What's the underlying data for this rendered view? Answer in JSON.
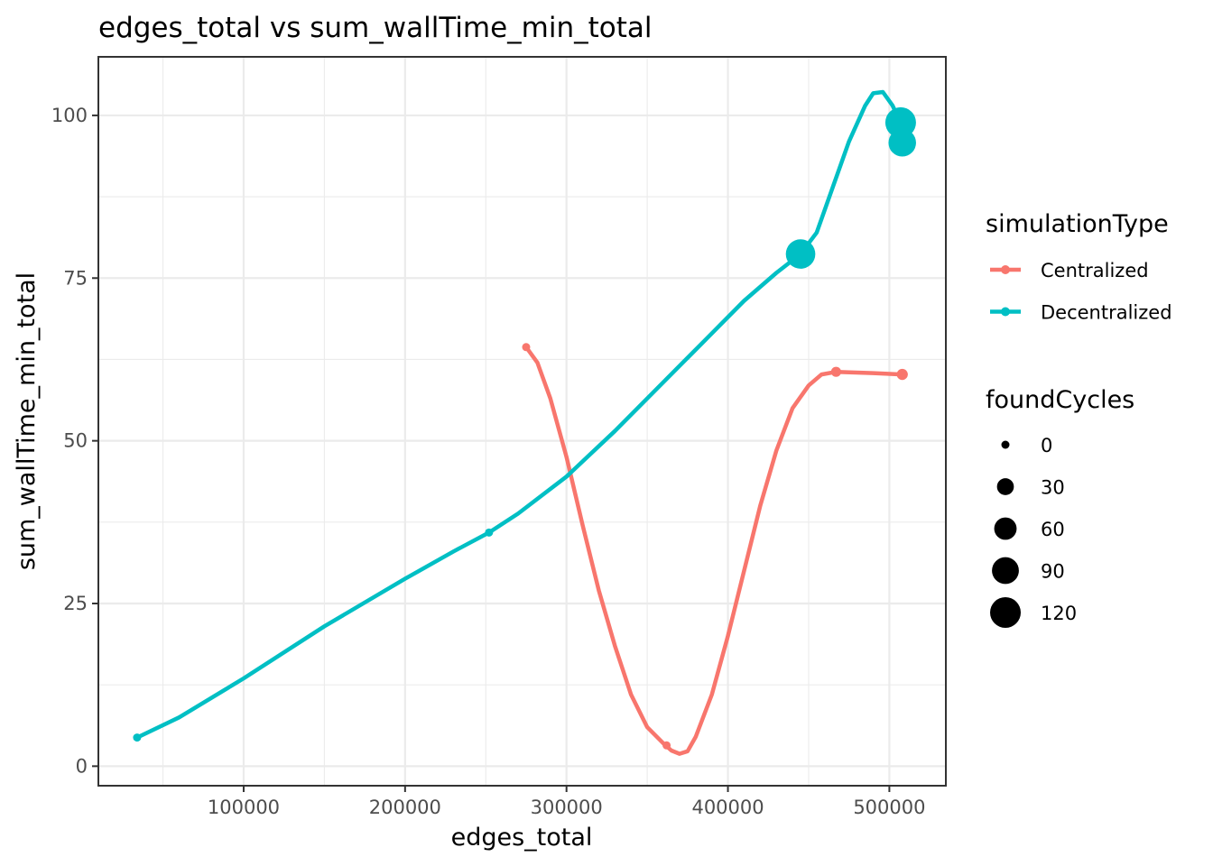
{
  "chart_data": {
    "type": "line",
    "title": "edges_total  vs  sum_wallTime_min_total",
    "xlabel": "edges_total",
    "ylabel": "sum_wallTime_min_total",
    "xlim": [
      10000,
      535000
    ],
    "ylim": [
      -3,
      109
    ],
    "x_ticks": [
      100000,
      200000,
      300000,
      400000,
      500000
    ],
    "x_tick_labels": [
      "100000",
      "200000",
      "300000",
      "400000",
      "500000"
    ],
    "y_ticks": [
      0,
      25,
      50,
      75,
      100
    ],
    "y_tick_labels": [
      "0",
      "25",
      "50",
      "75",
      "100"
    ],
    "grid": true,
    "legend_position": "right",
    "color_legend": {
      "title": "simulationType",
      "entries": [
        {
          "name": "Centralized",
          "color": "#F8766D"
        },
        {
          "name": "Decentralized",
          "color": "#00BFC4"
        }
      ]
    },
    "size_legend": {
      "title": "foundCycles",
      "values": [
        0,
        30,
        60,
        90,
        120
      ],
      "labels": [
        "0",
        "30",
        "60",
        "90",
        "120"
      ]
    },
    "series": [
      {
        "name": "Centralized",
        "color": "#F8766D",
        "points": [
          {
            "x": 275000,
            "y": 64.4,
            "foundCycles": 0
          },
          {
            "x": 362000,
            "y": 3.2,
            "foundCycles": 0
          },
          {
            "x": 467000,
            "y": 60.6,
            "foundCycles": 5
          },
          {
            "x": 508000,
            "y": 60.2,
            "foundCycles": 8
          }
        ],
        "smooth_curve": [
          [
            275000,
            64.4
          ],
          [
            282000,
            62.0
          ],
          [
            290000,
            56.5
          ],
          [
            300000,
            47.5
          ],
          [
            310000,
            37.0
          ],
          [
            320000,
            27.0
          ],
          [
            330000,
            18.5
          ],
          [
            340000,
            11.0
          ],
          [
            350000,
            6.0
          ],
          [
            360000,
            3.5
          ],
          [
            365000,
            2.4
          ],
          [
            370000,
            1.9
          ],
          [
            375000,
            2.3
          ],
          [
            380000,
            4.5
          ],
          [
            390000,
            11.0
          ],
          [
            400000,
            20.0
          ],
          [
            410000,
            30.0
          ],
          [
            420000,
            40.0
          ],
          [
            430000,
            48.5
          ],
          [
            440000,
            55.0
          ],
          [
            450000,
            58.5
          ],
          [
            458000,
            60.2
          ],
          [
            467000,
            60.6
          ],
          [
            490000,
            60.4
          ],
          [
            508000,
            60.2
          ]
        ]
      },
      {
        "name": "Decentralized",
        "color": "#00BFC4",
        "points": [
          {
            "x": 34000,
            "y": 4.4,
            "foundCycles": 0
          },
          {
            "x": 252000,
            "y": 35.9,
            "foundCycles": 0
          },
          {
            "x": 445000,
            "y": 78.7,
            "foundCycles": 110
          },
          {
            "x": 507000,
            "y": 98.9,
            "foundCycles": 120
          },
          {
            "x": 508000,
            "y": 95.8,
            "foundCycles": 95
          }
        ],
        "smooth_curve": [
          [
            34000,
            4.4
          ],
          [
            60000,
            7.5
          ],
          [
            100000,
            13.5
          ],
          [
            150000,
            21.5
          ],
          [
            200000,
            28.8
          ],
          [
            230000,
            33.0
          ],
          [
            252000,
            35.9
          ],
          [
            270000,
            38.8
          ],
          [
            300000,
            44.5
          ],
          [
            330000,
            51.5
          ],
          [
            360000,
            59.0
          ],
          [
            390000,
            66.5
          ],
          [
            410000,
            71.5
          ],
          [
            430000,
            75.8
          ],
          [
            445000,
            78.7
          ],
          [
            455000,
            82.0
          ],
          [
            465000,
            89.0
          ],
          [
            475000,
            96.0
          ],
          [
            485000,
            101.5
          ],
          [
            490000,
            103.4
          ],
          [
            496000,
            103.6
          ],
          [
            502000,
            101.5
          ],
          [
            507000,
            98.9
          ],
          [
            508000,
            95.8
          ]
        ]
      }
    ]
  }
}
